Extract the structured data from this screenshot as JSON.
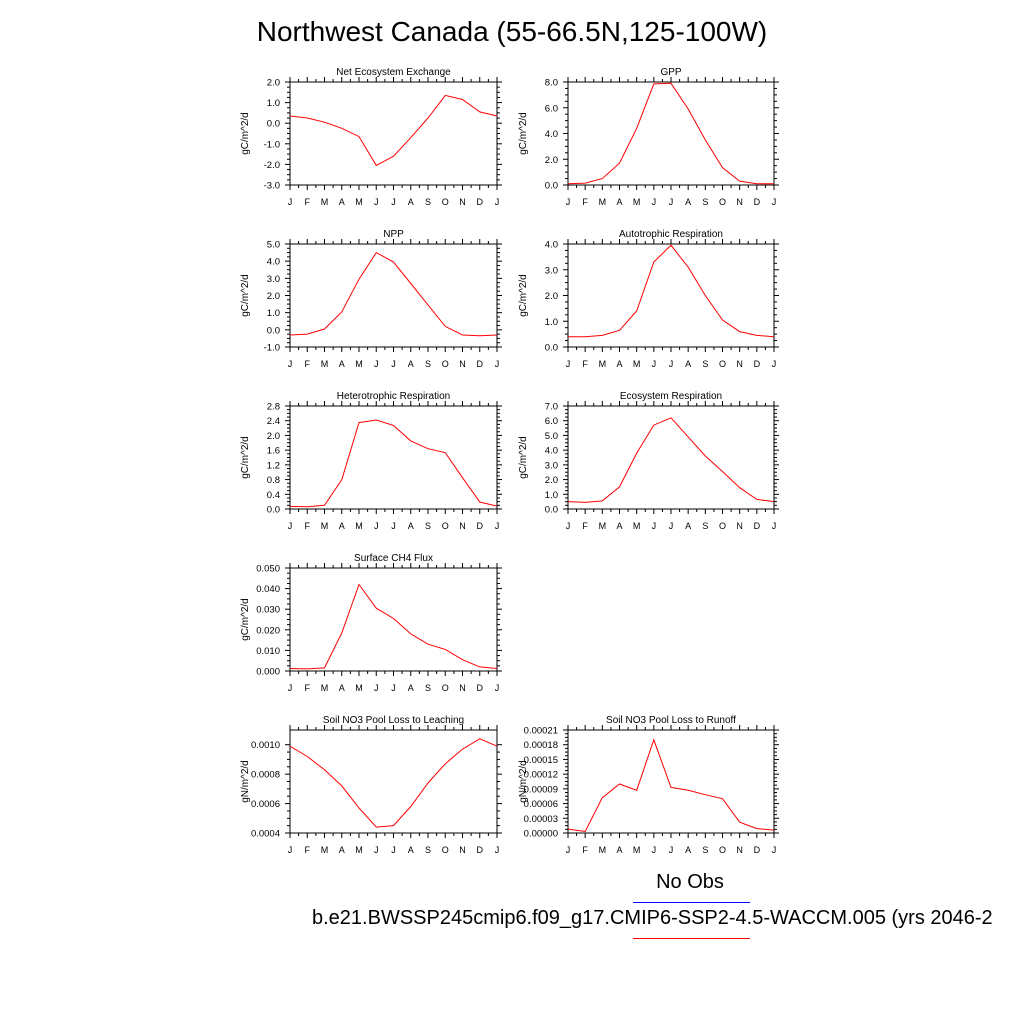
{
  "title": "Northwest Canada (55-66.5N,125-100W)",
  "colors": {
    "model_line": "#ff0000",
    "obs_line": "#0000ff",
    "axes": "#000000"
  },
  "legend": {
    "obs_label": "No Obs",
    "case_label": "b.e21.BWSSP245cmip6.f09_g17.CMIP6-SSP2-4.5-WACCM.005 (yrs 2046-2"
  },
  "chart_data": [
    {
      "type": "line",
      "title": "Net Ecosystem Exchange",
      "ylabel": "gC/m^2/d",
      "x": [
        "J",
        "F",
        "M",
        "A",
        "M",
        "J",
        "J",
        "A",
        "S",
        "O",
        "N",
        "D",
        "J"
      ],
      "values": [
        0.35,
        0.25,
        0.05,
        -0.25,
        -0.65,
        -2.05,
        -1.6,
        -0.7,
        0.25,
        1.35,
        1.15,
        0.55,
        0.35
      ],
      "ylim": [
        -3.0,
        2.0
      ],
      "yticks": [
        "-3.0",
        "-2.0",
        "-1.0",
        "0.0",
        "1.0",
        "2.0"
      ]
    },
    {
      "type": "line",
      "title": "GPP",
      "ylabel": "gC/m^2/d",
      "x": [
        "J",
        "F",
        "M",
        "A",
        "M",
        "J",
        "J",
        "A",
        "S",
        "O",
        "N",
        "D",
        "J"
      ],
      "values": [
        0.1,
        0.15,
        0.5,
        1.7,
        4.4,
        7.85,
        7.9,
        5.9,
        3.5,
        1.35,
        0.3,
        0.1,
        0.1
      ],
      "ylim": [
        0.0,
        8.0
      ],
      "yticks": [
        "0.0",
        "2.0",
        "4.0",
        "6.0",
        "8.0"
      ]
    },
    {
      "type": "line",
      "title": "NPP",
      "ylabel": "gC/m^2/d",
      "x": [
        "J",
        "F",
        "M",
        "A",
        "M",
        "J",
        "J",
        "A",
        "S",
        "O",
        "N",
        "D",
        "J"
      ],
      "values": [
        -0.3,
        -0.25,
        0.05,
        1.05,
        2.95,
        4.5,
        3.95,
        2.7,
        1.45,
        0.2,
        -0.3,
        -0.35,
        -0.3
      ],
      "ylim": [
        -1.0,
        5.0
      ],
      "yticks": [
        "-1.0",
        "0.0",
        "1.0",
        "2.0",
        "3.0",
        "4.0",
        "5.0"
      ]
    },
    {
      "type": "line",
      "title": "Autotrophic Respiration",
      "ylabel": "gC/m^2/d",
      "x": [
        "J",
        "F",
        "M",
        "A",
        "M",
        "J",
        "J",
        "A",
        "S",
        "O",
        "N",
        "D",
        "J"
      ],
      "values": [
        0.4,
        0.4,
        0.45,
        0.65,
        1.4,
        3.3,
        3.95,
        3.1,
        2.0,
        1.05,
        0.6,
        0.45,
        0.4
      ],
      "ylim": [
        0.0,
        4.0
      ],
      "yticks": [
        "0.0",
        "1.0",
        "2.0",
        "3.0",
        "4.0"
      ]
    },
    {
      "type": "line",
      "title": "Heterotrophic Respiration",
      "ylabel": "gC/m^2/d",
      "x": [
        "J",
        "F",
        "M",
        "A",
        "M",
        "J",
        "J",
        "A",
        "S",
        "O",
        "N",
        "D",
        "J"
      ],
      "values": [
        0.07,
        0.06,
        0.1,
        0.8,
        2.35,
        2.42,
        2.27,
        1.85,
        1.64,
        1.53,
        0.85,
        0.19,
        0.08
      ],
      "ylim": [
        0.0,
        2.8
      ],
      "yticks": [
        "0.0",
        "0.4",
        "0.8",
        "1.2",
        "1.6",
        "2.0",
        "2.4",
        "2.8"
      ]
    },
    {
      "type": "line",
      "title": "Ecosystem Respiration",
      "ylabel": "gC/m^2/d",
      "x": [
        "J",
        "F",
        "M",
        "A",
        "M",
        "J",
        "J",
        "A",
        "S",
        "O",
        "N",
        "D",
        "J"
      ],
      "values": [
        0.5,
        0.45,
        0.55,
        1.5,
        3.8,
        5.7,
        6.2,
        4.9,
        3.6,
        2.55,
        1.45,
        0.65,
        0.5
      ],
      "ylim": [
        0.0,
        7.0
      ],
      "yticks": [
        "0.0",
        "1.0",
        "2.0",
        "3.0",
        "4.0",
        "5.0",
        "6.0",
        "7.0"
      ]
    },
    {
      "type": "line",
      "title": "Surface CH4 Flux",
      "ylabel": "gC/m^2/d",
      "x": [
        "J",
        "F",
        "M",
        "A",
        "M",
        "J",
        "J",
        "A",
        "S",
        "O",
        "N",
        "D",
        "J"
      ],
      "values": [
        0.0012,
        0.001,
        0.0015,
        0.0185,
        0.042,
        0.0305,
        0.0255,
        0.018,
        0.013,
        0.0105,
        0.0055,
        0.002,
        0.0012
      ],
      "ylim": [
        0.0,
        0.05
      ],
      "yticks": [
        "0.000",
        "0.010",
        "0.020",
        "0.030",
        "0.040",
        "0.050"
      ]
    },
    {
      "type": "line",
      "title": "Soil NO3 Pool Loss to Leaching",
      "ylabel": "gN/m^2/d",
      "x": [
        "J",
        "F",
        "M",
        "A",
        "M",
        "J",
        "J",
        "A",
        "S",
        "O",
        "N",
        "D",
        "J"
      ],
      "values": [
        0.00099,
        0.00092,
        0.00083,
        0.00072,
        0.00057,
        0.00044,
        0.00045,
        0.00058,
        0.00074,
        0.00087,
        0.00097,
        0.00104,
        0.00099
      ],
      "ylim": [
        0.0004,
        0.0011
      ],
      "yticks": [
        "0.0004",
        "0.0006",
        "0.0008",
        "0.0010"
      ],
      "ytick_values": [
        0.0004,
        0.0006,
        0.0008,
        0.001
      ]
    },
    {
      "type": "line",
      "title": "Soil NO3 Pool Loss to Runoff",
      "ylabel": "gN/m^2/d",
      "x": [
        "J",
        "F",
        "M",
        "A",
        "M",
        "J",
        "J",
        "A",
        "S",
        "O",
        "N",
        "D",
        "J"
      ],
      "values": [
        8e-06,
        3e-06,
        7.2e-05,
        0.0001,
        8.7e-05,
        0.00019,
        9.3e-05,
        8.7e-05,
        7.8e-05,
        7e-05,
        2.2e-05,
        9e-06,
        6e-06
      ],
      "ylim": [
        0.0,
        0.00021
      ],
      "yticks": [
        "0.00000",
        "0.00003",
        "0.00006",
        "0.00009",
        "0.00012",
        "0.00015",
        "0.00018",
        "0.00021"
      ]
    }
  ]
}
